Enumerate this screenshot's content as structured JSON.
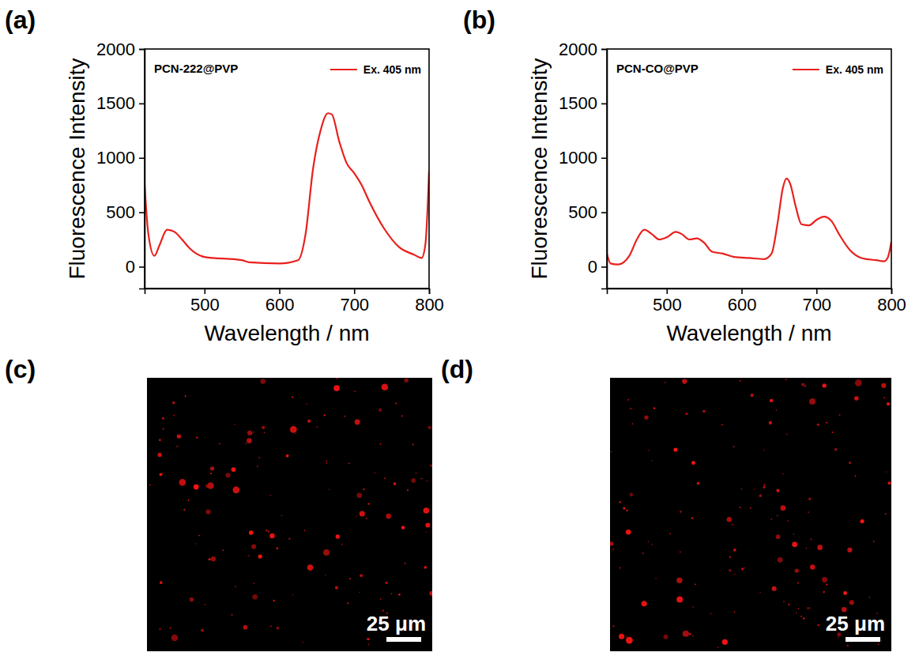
{
  "chart_data": [
    {
      "type": "line",
      "panel": "(a)",
      "title": "PCN-222@PVP",
      "x_label": "Wavelength / nm",
      "y_label": "Fluorescence Intensity",
      "x": [
        420,
        425,
        433,
        440,
        450,
        460,
        470,
        480,
        500,
        550,
        560,
        600,
        625,
        635,
        645,
        655,
        665,
        670,
        680,
        690,
        700,
        710,
        720,
        740,
        760,
        780,
        790,
        795,
        800
      ],
      "series": [
        {
          "name": "Ex. 405 nm",
          "color": "#e8201c",
          "values": [
            750,
            300,
            100,
            200,
            340,
            320,
            250,
            170,
            90,
            60,
            40,
            30,
            60,
            300,
            900,
            1250,
            1410,
            1400,
            1150,
            950,
            860,
            750,
            600,
            350,
            180,
            110,
            80,
            200,
            880
          ]
        }
      ],
      "xlim": [
        420,
        800
      ],
      "xticks": [
        500,
        600,
        700,
        800
      ],
      "ylim": [
        -200,
        2000
      ],
      "yticks": [
        0,
        500,
        1000,
        1500,
        2000
      ],
      "grid": false,
      "legend": "upper right"
    },
    {
      "type": "line",
      "panel": "(b)",
      "title": "PCN-CO@PVP",
      "x_label": "Wavelength / nm",
      "y_label": "Fluorescence Intensity",
      "x": [
        420,
        425,
        435,
        450,
        460,
        470,
        480,
        490,
        500,
        512,
        520,
        530,
        540,
        550,
        560,
        575,
        590,
        610,
        630,
        640,
        648,
        655,
        660,
        665,
        672,
        680,
        690,
        700,
        710,
        720,
        730,
        745,
        760,
        780,
        790,
        795,
        800
      ],
      "series": [
        {
          "name": "Ex. 405 nm",
          "color": "#e8201c",
          "values": [
            120,
            30,
            20,
            100,
            250,
            340,
            300,
            250,
            270,
            320,
            300,
            250,
            260,
            220,
            140,
            120,
            90,
            80,
            70,
            120,
            400,
            720,
            810,
            760,
            560,
            390,
            380,
            430,
            460,
            420,
            300,
            150,
            80,
            60,
            50,
            80,
            230
          ]
        }
      ],
      "xlim": [
        420,
        800
      ],
      "xticks": [
        500,
        600,
        700,
        800
      ],
      "ylim": [
        -200,
        2000
      ],
      "yticks": [
        0,
        500,
        1000,
        1500,
        2000
      ],
      "grid": false,
      "legend": "upper right"
    }
  ],
  "images": [
    {
      "panel": "(c)",
      "scale_bar": "25 μm"
    },
    {
      "panel": "(d)",
      "scale_bar": "25 μm"
    }
  ]
}
